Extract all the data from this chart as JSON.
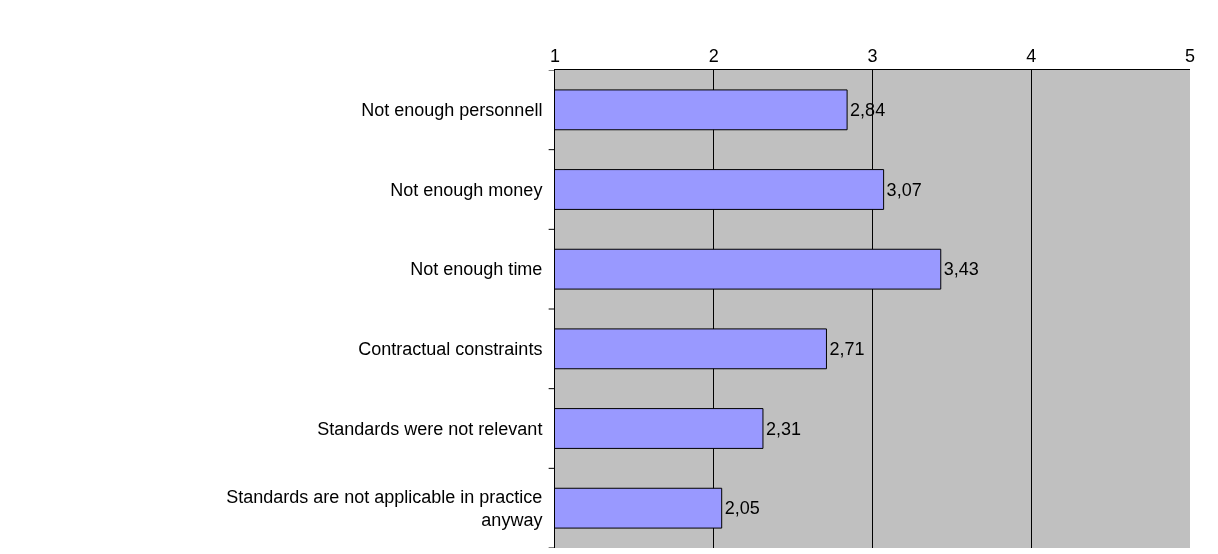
{
  "chart_data": {
    "type": "bar",
    "orientation": "horizontal",
    "categories": [
      "Not enough personnell",
      "Not enough money",
      "Not enough time",
      "Contractual constraints",
      "Standards were not relevant",
      "Standards are not applicable in practice anyway"
    ],
    "values": [
      2.84,
      3.07,
      3.43,
      2.71,
      2.31,
      2.05
    ],
    "value_labels": [
      "2,84",
      "3,07",
      "3,43",
      "2,71",
      "2,31",
      "2,05"
    ],
    "color": "#9999ff",
    "xlim": [
      1,
      5
    ],
    "xticks": [
      1,
      2,
      3,
      4,
      5
    ],
    "grid": "x"
  }
}
